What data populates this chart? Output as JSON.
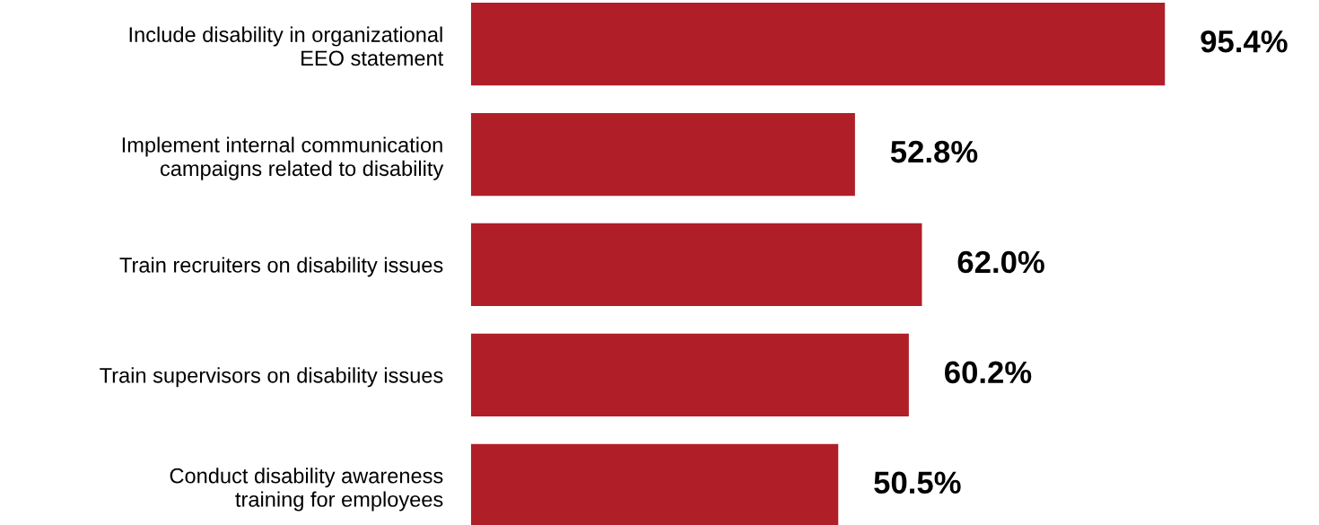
{
  "chart_data": {
    "type": "bar",
    "orientation": "horizontal",
    "categories": [
      "Include disability in organizational\nEEO statement",
      "Implement internal communication\ncampaigns related to disability",
      "Train recruiters on disability issues",
      "Train supervisors on disability issues",
      "Conduct disability awareness\ntraining for employees"
    ],
    "values": [
      95.4,
      52.8,
      62.0,
      60.2,
      50.5
    ],
    "value_labels": [
      "95.4%",
      "52.8%",
      "62.0%",
      "60.2%",
      "50.5%"
    ],
    "color": "#b01f27"
  }
}
